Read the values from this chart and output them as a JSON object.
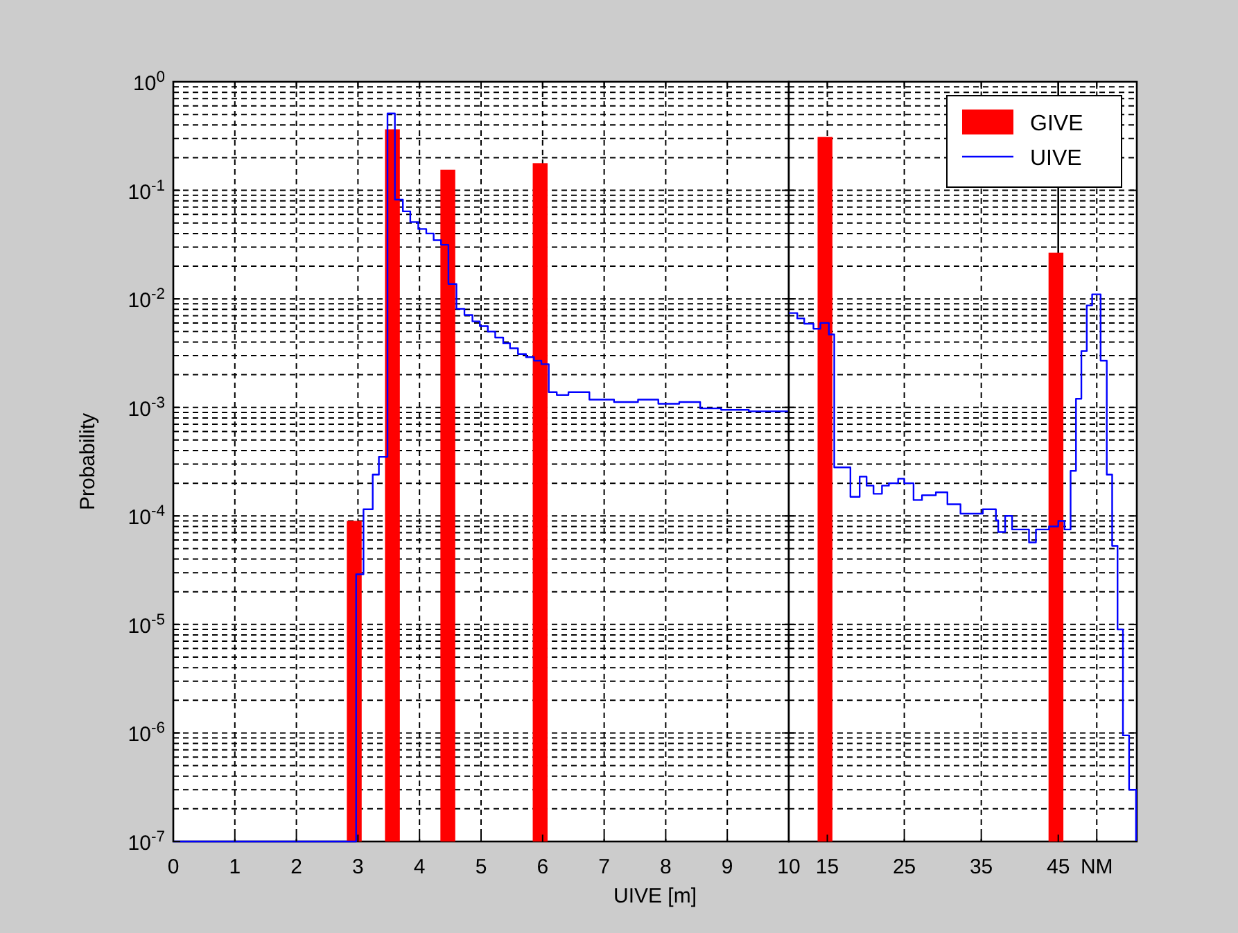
{
  "chart_data": [
    {
      "type": "bar",
      "ylabel": "Probability",
      "xlim": [
        0,
        10
      ],
      "xticks": [
        0,
        1,
        2,
        3,
        4,
        5,
        6,
        7,
        8,
        9,
        10
      ],
      "ylim": [
        1e-07,
        1
      ],
      "yticks": [
        {
          "value": 1e-07,
          "label": "10$^{-7}$"
        },
        {
          "value": 1e-06,
          "label": "10$^{-6}$"
        },
        {
          "value": 1e-05,
          "label": "10$^{-5}$"
        },
        {
          "value": 0.0001,
          "label": "10$^{-4}$"
        },
        {
          "value": 0.001,
          "label": "10$^{-3}$"
        },
        {
          "value": 0.01,
          "label": "10$^{-2}$"
        },
        {
          "value": 0.1,
          "label": "10$^{-1}$"
        },
        {
          "value": 1,
          "label": "10$^{0}$"
        }
      ],
      "log": "y",
      "grid": true,
      "series": [
        {
          "color": "#ff0000",
          "x": [
            2.94,
            3.56,
            4.46,
            5.96
          ],
          "values": [
            9e-05,
            0.365,
            0.155,
            0.178
          ]
        },
        {
          "type": "step",
          "color": "#0000ff",
          "x": [
            0,
            2.97,
            3.09,
            3.24,
            3.34,
            3.48,
            3.6,
            3.73,
            3.85,
            3.98,
            4.11,
            4.23,
            4.35,
            4.47,
            4.6,
            4.73,
            4.86,
            4.98,
            5.11,
            5.23,
            5.36,
            5.47,
            5.6,
            5.73,
            5.86,
            5.98,
            6.1,
            6.23,
            6.42,
            6.76,
            7.16,
            7.55,
            7.88,
            8.22,
            8.56,
            8.9,
            9.35,
            9.68,
            10
          ],
          "values": [
            1e-07,
            2.9e-05,
            0.000115,
            0.00024,
            0.00035,
            0.51,
            0.082,
            0.064,
            0.051,
            0.044,
            0.04,
            0.0347,
            0.0315,
            0.0137,
            0.0081,
            0.0071,
            0.0062,
            0.0056,
            0.005,
            0.0044,
            0.0039,
            0.0035,
            0.0031,
            0.0029,
            0.0027,
            0.0025,
            0.00138,
            0.0013,
            0.00138,
            0.00118,
            0.00112,
            0.00118,
            0.00108,
            0.00112,
            0.00098,
            0.00095,
            0.00092,
            0.00092,
            0.00092
          ]
        }
      ]
    },
    {
      "type": "bar",
      "xlabel": "UIVE [m]",
      "xlim": [
        10,
        55.2
      ],
      "xticks": [
        15,
        25,
        35,
        45,
        {
          "value": 50,
          "label": "NM"
        }
      ],
      "ylim": [
        1e-07,
        1
      ],
      "yticks": [
        1e-07,
        1e-06,
        1e-05,
        0.0001,
        0.001,
        0.01,
        0.1,
        1
      ],
      "tick_labels": "x",
      "log": "y",
      "grid": true,
      "legend": "top right",
      "ref_lines": [
        {
          "axis": "x",
          "value": 45,
          "color": "#000000",
          "line_style": "solid"
        }
      ],
      "series": [
        {
          "name": "GIVE",
          "color": "#ff0000",
          "x": [
            14.7,
            44.7
          ],
          "values": [
            0.31,
            0.0266
          ]
        },
        {
          "name": "UIVE",
          "type": "step",
          "color": "#0000ff",
          "x": [
            10,
            11.1,
            12,
            13.2,
            14.1,
            15.2,
            15.9,
            18,
            19.2,
            20.1,
            21,
            22.1,
            23,
            24.2,
            25,
            26.2,
            27.3,
            29.1,
            30.6,
            32.3,
            35.2,
            36.9,
            37.2,
            38.1,
            39,
            41.2,
            42.1,
            43.8,
            45,
            45.8,
            46.6,
            47.3,
            48,
            48.7,
            49.4,
            50.5,
            51.3,
            52,
            52.7,
            53.4,
            54.2,
            55.1
          ],
          "values": [
            0.0074,
            0.0066,
            0.0059,
            0.0053,
            0.006,
            0.0047,
            0.00028,
            0.00015,
            0.00023,
            0.00019,
            0.00016,
            0.00019,
            0.0002,
            0.00022,
            0.0002,
            0.00014,
            0.000155,
            0.000165,
            0.000128,
            0.000105,
            0.000115,
            9.1e-05,
            7.1e-05,
            0.0001,
            7.5e-05,
            5.7e-05,
            7.5e-05,
            8e-05,
            9e-05,
            7.5e-05,
            0.00026,
            0.0012,
            0.0033,
            0.0087,
            0.011,
            0.0027,
            0.00024,
            5.3e-05,
            9e-06,
            9.5e-07,
            3e-07,
            1e-07
          ]
        }
      ]
    }
  ]
}
